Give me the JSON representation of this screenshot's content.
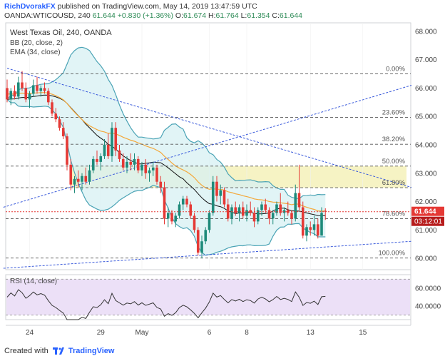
{
  "header": {
    "author": "RichDvorakFX",
    "published_text": "published on TradingView.com, May 14, 2019 13:47:59 UTC",
    "symbol": "OANDA:WTICOUSD, 240",
    "last": "61.644",
    "change": "+0.830 (+1.36%)",
    "o_label": "O:",
    "o": "61.674",
    "h_label": "H:",
    "h": "61.764",
    "l_label": "L:",
    "l": "61.354",
    "c_label": "C:",
    "c": "61.644"
  },
  "footer": {
    "prefix": "Created with",
    "brand": "TradingView"
  },
  "colors": {
    "bull": "#26a69a",
    "bear": "#ef5350",
    "candle_up": "#1e8a7a",
    "candle_down": "#e53935",
    "bb_line": "#4aa3b5",
    "bb_fill": "#d7f0f3",
    "ema": "#f4a83a",
    "basis": "#111111",
    "trend": "#3b5bdb",
    "fib_band": "#f6f3c4",
    "rsi_fill": "#ece0f7",
    "rsi_line": "#333333",
    "price_tag": "#e53935",
    "timer_tag": "#b71c1c"
  },
  "chart_data": [
    {
      "type": "candlestick",
      "title": "West Texas Oil, 240, OANDA",
      "indicators": [
        "BB (20, close, 2)",
        "EMA (34, close)"
      ],
      "yaxis": {
        "ticks": [
          "68.000",
          "67.000",
          "66.000",
          "65.000",
          "64.000",
          "63.000",
          "62.000",
          "61.000",
          "60.000"
        ],
        "range": [
          59.6,
          68.3
        ]
      },
      "xaxis": {
        "ticks": [
          "24",
          "29",
          "May",
          "6",
          "8",
          "13",
          "15"
        ]
      },
      "last_price_label": "61.644",
      "countdown_label": "03:12:01",
      "fib_levels": [
        {
          "label": "0.00%",
          "value": 66.5
        },
        {
          "label": "23.60%",
          "value": 64.97
        },
        {
          "label": "38.20%",
          "value": 64.02
        },
        {
          "label": "50.00%",
          "value": 63.25
        },
        {
          "label": "61.80%",
          "value": 62.49
        },
        {
          "label": "78.60%",
          "value": 61.4
        },
        {
          "label": "100.00%",
          "value": 60.01
        }
      ],
      "candles": [
        [
          66.0,
          66.3,
          65.5,
          65.6
        ],
        [
          65.6,
          66.0,
          65.4,
          65.9
        ],
        [
          65.9,
          66.1,
          65.6,
          65.7
        ],
        [
          65.7,
          66.4,
          65.6,
          66.2
        ],
        [
          66.2,
          66.6,
          65.9,
          66.0
        ],
        [
          66.0,
          66.2,
          65.5,
          65.6
        ],
        [
          65.6,
          65.9,
          65.3,
          65.8
        ],
        [
          65.8,
          66.3,
          65.7,
          66.1
        ],
        [
          66.1,
          66.4,
          65.8,
          65.9
        ],
        [
          65.9,
          66.1,
          65.7,
          66.0
        ],
        [
          66.0,
          66.2,
          65.8,
          65.9
        ],
        [
          65.9,
          66.0,
          65.4,
          65.5
        ],
        [
          65.5,
          65.6,
          65.0,
          65.1
        ],
        [
          65.1,
          65.3,
          64.8,
          64.9
        ],
        [
          64.9,
          65.0,
          64.5,
          64.6
        ],
        [
          64.6,
          64.8,
          64.2,
          64.3
        ],
        [
          64.3,
          64.4,
          63.1,
          63.3
        ],
        [
          63.3,
          63.5,
          62.4,
          62.6
        ],
        [
          62.6,
          62.9,
          62.3,
          62.8
        ],
        [
          62.8,
          63.1,
          62.5,
          62.7
        ],
        [
          62.7,
          63.0,
          62.4,
          62.9
        ],
        [
          62.9,
          63.2,
          62.6,
          62.7
        ],
        [
          62.7,
          63.3,
          62.6,
          63.1
        ],
        [
          63.1,
          63.6,
          63.0,
          63.5
        ],
        [
          63.5,
          63.8,
          63.3,
          63.4
        ],
        [
          63.4,
          63.7,
          63.1,
          63.6
        ],
        [
          63.6,
          64.2,
          63.5,
          64.0
        ],
        [
          64.0,
          64.4,
          63.5,
          63.6
        ],
        [
          63.6,
          64.8,
          63.4,
          64.6
        ],
        [
          64.6,
          64.8,
          63.6,
          63.8
        ],
        [
          63.8,
          64.0,
          63.4,
          63.5
        ],
        [
          63.5,
          63.7,
          63.1,
          63.2
        ],
        [
          63.2,
          63.6,
          63.0,
          63.4
        ],
        [
          63.4,
          63.7,
          63.1,
          63.3
        ],
        [
          63.3,
          63.7,
          63.1,
          63.5
        ],
        [
          63.5,
          63.6,
          63.0,
          63.1
        ],
        [
          63.1,
          63.4,
          62.9,
          63.3
        ],
        [
          63.3,
          63.5,
          62.8,
          63.0
        ],
        [
          63.0,
          63.2,
          62.7,
          63.1
        ],
        [
          63.1,
          63.4,
          62.9,
          63.2
        ],
        [
          63.2,
          63.3,
          62.6,
          62.7
        ],
        [
          62.7,
          62.9,
          62.3,
          62.5
        ],
        [
          62.5,
          62.7,
          61.2,
          61.4
        ],
        [
          61.4,
          61.8,
          61.1,
          61.6
        ],
        [
          61.6,
          61.7,
          61.2,
          61.3
        ],
        [
          61.3,
          61.6,
          61.1,
          61.5
        ],
        [
          61.5,
          62.0,
          61.4,
          61.9
        ],
        [
          61.9,
          62.2,
          61.7,
          62.1
        ],
        [
          62.1,
          62.2,
          61.8,
          61.9
        ],
        [
          61.9,
          62.0,
          61.4,
          61.5
        ],
        [
          61.5,
          61.6,
          60.9,
          61.0
        ],
        [
          61.0,
          61.1,
          60.1,
          60.2
        ],
        [
          60.2,
          60.8,
          60.0,
          60.6
        ],
        [
          60.6,
          61.1,
          60.5,
          61.0
        ],
        [
          61.0,
          61.7,
          60.9,
          61.6
        ],
        [
          61.6,
          62.9,
          61.5,
          62.7
        ],
        [
          62.7,
          62.9,
          62.0,
          62.2
        ],
        [
          62.2,
          62.6,
          61.9,
          62.4
        ],
        [
          62.4,
          62.5,
          61.8,
          61.9
        ],
        [
          61.9,
          62.1,
          61.3,
          61.4
        ],
        [
          61.4,
          61.9,
          61.2,
          61.8
        ],
        [
          61.8,
          62.0,
          61.5,
          61.6
        ],
        [
          61.6,
          61.9,
          61.3,
          61.8
        ],
        [
          61.8,
          62.0,
          61.4,
          61.5
        ],
        [
          61.5,
          61.9,
          61.3,
          61.7
        ],
        [
          61.7,
          62.0,
          61.5,
          61.6
        ],
        [
          61.6,
          61.8,
          61.1,
          61.3
        ],
        [
          61.3,
          61.8,
          61.2,
          61.7
        ],
        [
          61.7,
          62.0,
          61.5,
          61.9
        ],
        [
          61.9,
          62.1,
          61.6,
          61.7
        ],
        [
          61.7,
          61.8,
          61.2,
          61.4
        ],
        [
          61.4,
          61.7,
          61.2,
          61.6
        ],
        [
          61.6,
          62.0,
          61.5,
          61.9
        ],
        [
          61.9,
          62.3,
          61.5,
          61.6
        ],
        [
          61.6,
          61.8,
          61.3,
          61.7
        ],
        [
          61.7,
          62.0,
          61.5,
          61.6
        ],
        [
          61.6,
          61.7,
          61.2,
          61.4
        ],
        [
          61.4,
          62.6,
          61.3,
          62.3
        ],
        [
          62.3,
          63.3,
          61.7,
          61.8
        ],
        [
          61.8,
          62.0,
          60.7,
          60.8
        ],
        [
          60.8,
          61.2,
          60.6,
          61.1
        ],
        [
          61.1,
          61.3,
          60.8,
          61.0
        ],
        [
          61.0,
          61.5,
          60.8,
          61.2
        ],
        [
          61.2,
          61.4,
          60.7,
          60.8
        ],
        [
          60.8,
          61.8,
          60.8,
          61.6
        ],
        [
          61.674,
          61.764,
          61.354,
          61.644
        ]
      ]
    },
    {
      "type": "line",
      "title": "RSI (14, close)",
      "yaxis": {
        "ticks": [
          "60.0000",
          "40.0000"
        ],
        "range": [
          25,
          75
        ]
      }
    }
  ]
}
